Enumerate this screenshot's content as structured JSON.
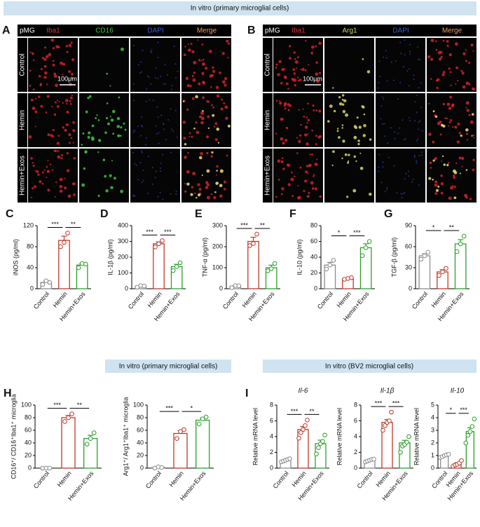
{
  "figure": {
    "banner_top": "In vitro (primary microglial cells)",
    "banner_h": "In vitro (primary microglial cells)",
    "banner_i": "In vitro (BV2 microglial cells)",
    "panels": [
      {
        "letter": "A",
        "header": [
          "pMG",
          "Iba1",
          "CD16",
          "DAPI",
          "Merge"
        ],
        "rows": [
          "Control",
          "Hemin",
          "Hemin+Exos"
        ],
        "scale": "100μm"
      },
      {
        "letter": "B",
        "header": [
          "pMG",
          "Iba1",
          "Arg1",
          "DAPI",
          "Merge"
        ],
        "rows": [
          "Control",
          "Hemin",
          "Hemin+Exos"
        ],
        "scale": "100μm"
      }
    ]
  },
  "chart_data": [
    {
      "type": "bar",
      "panel": "C",
      "ylabel": "iNOS (pg/ml)",
      "categories": [
        "Control",
        "Hemin",
        "Hemin+Exos"
      ],
      "colors": [
        "#8c8c8c",
        "#c0392b",
        "#2ca02c"
      ],
      "values": [
        12,
        92,
        45
      ],
      "errors": [
        3,
        8,
        3
      ],
      "points": [
        [
          8,
          15,
          12
        ],
        [
          80,
          88,
          106
        ],
        [
          40,
          48,
          47
        ]
      ],
      "ylim": [
        0,
        120
      ],
      "yticks": [
        0,
        40,
        80,
        120
      ],
      "brackets": [
        "***",
        "**"
      ]
    },
    {
      "type": "bar",
      "panel": "D",
      "ylabel": "IL-1β (pg/ml)",
      "categories": [
        "Control",
        "Hemin",
        "Hemin+Exos"
      ],
      "colors": [
        "#8c8c8c",
        "#c0392b",
        "#2ca02c"
      ],
      "values": [
        16,
        285,
        140
      ],
      "errors": [
        3,
        12,
        15
      ],
      "points": [
        [
          10,
          20,
          17
        ],
        [
          265,
          285,
          305
        ],
        [
          115,
          140,
          165
        ]
      ],
      "ylim": [
        0,
        400
      ],
      "yticks": [
        0,
        100,
        200,
        300,
        400
      ],
      "brackets": [
        "***",
        "***"
      ]
    },
    {
      "type": "bar",
      "panel": "E",
      "ylabel": "TNF-α (pg/ml)",
      "categories": [
        "Control",
        "Hemin",
        "Hemin+Exos"
      ],
      "colors": [
        "#8c8c8c",
        "#c0392b",
        "#2ca02c"
      ],
      "values": [
        12,
        225,
        100
      ],
      "errors": [
        3,
        20,
        12
      ],
      "points": [
        [
          5,
          15,
          14
        ],
        [
          205,
          215,
          260
        ],
        [
          85,
          95,
          120
        ]
      ],
      "ylim": [
        0,
        300
      ],
      "yticks": [
        0,
        100,
        200,
        300
      ],
      "brackets": [
        "***",
        "**"
      ]
    },
    {
      "type": "bar",
      "panel": "F",
      "ylabel": "IL-10 (pg/ml)",
      "categories": [
        "Control",
        "Hemin",
        "Hemin+Exos"
      ],
      "colors": [
        "#8c8c8c",
        "#c0392b",
        "#2ca02c"
      ],
      "values": [
        30,
        13,
        52
      ],
      "errors": [
        3.5,
        0.6,
        5
      ],
      "points": [
        [
          25,
          30,
          36
        ],
        [
          12,
          13,
          14
        ],
        [
          42,
          52,
          60
        ]
      ],
      "ylim": [
        0,
        80
      ],
      "yticks": [
        0,
        20,
        40,
        60,
        80
      ],
      "brackets": [
        "*",
        "***"
      ]
    },
    {
      "type": "bar",
      "panel": "G",
      "ylabel": "TGF-β (pg/ml)",
      "categories": [
        "Control",
        "Hemin",
        "Hemin+Exos"
      ],
      "colors": [
        "#8c8c8c",
        "#c0392b",
        "#2ca02c"
      ],
      "values": [
        47,
        24,
        64
      ],
      "errors": [
        3,
        3,
        6
      ],
      "points": [
        [
          42,
          47,
          52
        ],
        [
          19,
          24,
          29
        ],
        [
          53,
          64,
          75
        ]
      ],
      "ylim": [
        0,
        90
      ],
      "yticks": [
        0,
        30,
        60,
        90
      ],
      "brackets": [
        "*",
        "**"
      ]
    },
    {
      "type": "bar",
      "panel": "H",
      "ylabel": "CD16⁺/ CD16⁺Iba1⁺ microglia",
      "categories": [
        "Control",
        "Hemin",
        "Hemin+Exos"
      ],
      "colors": [
        "#8c8c8c",
        "#c0392b",
        "#2ca02c"
      ],
      "values": [
        0,
        80,
        47
      ],
      "errors": [
        0,
        3.5,
        5
      ],
      "points": [
        [
          0,
          0,
          0
        ],
        [
          74,
          80,
          86
        ],
        [
          38,
          47,
          56
        ]
      ],
      "ylim": [
        0,
        100
      ],
      "yticks": [
        0,
        20,
        40,
        60,
        80,
        100
      ],
      "brackets": [
        "***",
        "**"
      ]
    },
    {
      "type": "bar",
      "ylabel": "Arg1⁺/ Arg1⁺Iba1⁺ microglia",
      "categories": [
        "Control",
        "Hemin",
        "Hemin+Exos"
      ],
      "colors": [
        "#8c8c8c",
        "#c0392b",
        "#2ca02c"
      ],
      "values": [
        1,
        55,
        76
      ],
      "errors": [
        0.6,
        4.5,
        3.5
      ],
      "points": [
        [
          0,
          2,
          1
        ],
        [
          47,
          58,
          61
        ],
        [
          70,
          78,
          81
        ]
      ],
      "ylim": [
        0,
        100
      ],
      "yticks": [
        0,
        20,
        40,
        60,
        80,
        100
      ],
      "brackets": [
        "***",
        "*"
      ]
    },
    {
      "type": "bar",
      "panel": "I",
      "title": "Il-6",
      "ylabel": "Relative mRNA level",
      "categories": [
        "Control",
        "Hemin",
        "Hemin+Exos"
      ],
      "colors": [
        "#8c8c8c",
        "#c0392b",
        "#2ca02c"
      ],
      "values": [
        1,
        4.9,
        3.1
      ],
      "errors": [
        0.08,
        0.38,
        0.45
      ],
      "points": [
        [
          0.8,
          0.9,
          1.0,
          1.1,
          1.2
        ],
        [
          3.8,
          4.5,
          4.9,
          5.4,
          6.1
        ],
        [
          1.8,
          2.6,
          3.1,
          3.4,
          4.2
        ]
      ],
      "ylim": [
        0,
        8
      ],
      "yticks": [
        0,
        2,
        4,
        6,
        8
      ],
      "brackets": [
        "***",
        "**"
      ]
    },
    {
      "type": "bar",
      "title": "Il-1β",
      "ylabel": "Relative mRNA level",
      "categories": [
        "Control",
        "Hemin",
        "Hemin+Exos"
      ],
      "colors": [
        "#8c8c8c",
        "#c0392b",
        "#2ca02c"
      ],
      "values": [
        1,
        5.8,
        3.2
      ],
      "errors": [
        0.07,
        0.37,
        0.33
      ],
      "points": [
        [
          0.8,
          0.9,
          1.0,
          1.1,
          1.15
        ],
        [
          4.8,
          5.4,
          5.8,
          6.0,
          7.1
        ],
        [
          2.0,
          2.8,
          3.0,
          3.3,
          4.0
        ]
      ],
      "ylim": [
        0,
        8
      ],
      "yticks": [
        0,
        2,
        4,
        6,
        8
      ],
      "brackets": [
        "***",
        "***"
      ]
    },
    {
      "type": "bar",
      "title": "Il-10",
      "ylabel": "Relative mRNA level",
      "categories": [
        "Control",
        "Hemin",
        "Hemin+Exos"
      ],
      "colors": [
        "#8c8c8c",
        "#c0392b",
        "#2ca02c"
      ],
      "values": [
        1,
        0.35,
        2.9
      ],
      "errors": [
        0.04,
        0.08,
        0.3
      ],
      "points": [
        [
          0.85,
          0.9,
          1.0,
          1.05,
          1.1
        ],
        [
          0.15,
          0.25,
          0.3,
          0.4,
          0.6
        ],
        [
          2.0,
          2.6,
          2.9,
          3.3,
          3.9
        ]
      ],
      "ylim": [
        0,
        5
      ],
      "yticks": [
        0,
        1,
        2,
        3,
        4,
        5
      ],
      "brackets": [
        "*",
        "***"
      ]
    }
  ]
}
